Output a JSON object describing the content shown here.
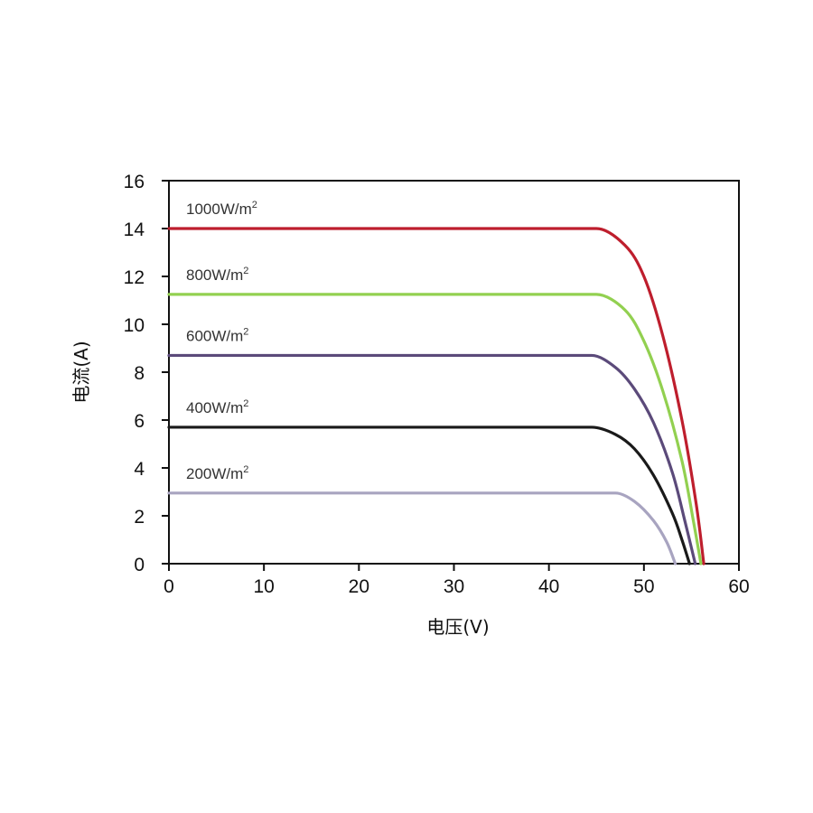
{
  "chart_data": {
    "type": "line",
    "title": "",
    "xlabel": "电压(V)",
    "ylabel": "电流(A)",
    "xlim": [
      0,
      60
    ],
    "ylim": [
      0,
      16
    ],
    "x_ticks": [
      "0",
      "10",
      "20",
      "30",
      "40",
      "50",
      "60"
    ],
    "y_ticks": [
      "0",
      "2",
      "4",
      "6",
      "8",
      "10",
      "12",
      "14",
      "16"
    ],
    "grid": false,
    "legend": "inline labels above each curve",
    "series": [
      {
        "label_main": "1000W/m",
        "label_sup": "2",
        "color": "#be1e2d",
        "points": [
          [
            0,
            14.0
          ],
          [
            45,
            14.0
          ],
          [
            48,
            13.3
          ],
          [
            50,
            12.0
          ],
          [
            52,
            9.5
          ],
          [
            54,
            6.0
          ],
          [
            55.5,
            2.5
          ],
          [
            56.3,
            0
          ]
        ]
      },
      {
        "label_main": "800W/m",
        "label_sup": "2",
        "color": "#92d050",
        "points": [
          [
            0,
            11.25
          ],
          [
            45,
            11.25
          ],
          [
            48,
            10.6
          ],
          [
            50,
            9.3
          ],
          [
            52,
            7.2
          ],
          [
            54,
            4.3
          ],
          [
            55.2,
            1.8
          ],
          [
            56.0,
            0
          ]
        ]
      },
      {
        "label_main": "600W/m",
        "label_sup": "2",
        "color": "#5b4a7a",
        "points": [
          [
            0,
            8.7
          ],
          [
            44.5,
            8.7
          ],
          [
            47,
            8.2
          ],
          [
            49,
            7.3
          ],
          [
            51,
            5.9
          ],
          [
            53,
            3.8
          ],
          [
            54.3,
            1.8
          ],
          [
            55.4,
            0
          ]
        ]
      },
      {
        "label_main": "400W/m",
        "label_sup": "2",
        "color": "#1a1a1a",
        "points": [
          [
            0,
            5.7
          ],
          [
            44.5,
            5.7
          ],
          [
            47,
            5.4
          ],
          [
            49,
            4.8
          ],
          [
            51,
            3.7
          ],
          [
            53,
            2.1
          ],
          [
            54.0,
            1.0
          ],
          [
            54.8,
            0
          ]
        ]
      },
      {
        "label_main": "200W/m",
        "label_sup": "2",
        "color": "#a8a4c0",
        "points": [
          [
            0,
            2.95
          ],
          [
            47,
            2.95
          ],
          [
            49,
            2.6
          ],
          [
            51,
            1.8
          ],
          [
            52.4,
            0.9
          ],
          [
            53.3,
            0
          ]
        ]
      }
    ]
  }
}
